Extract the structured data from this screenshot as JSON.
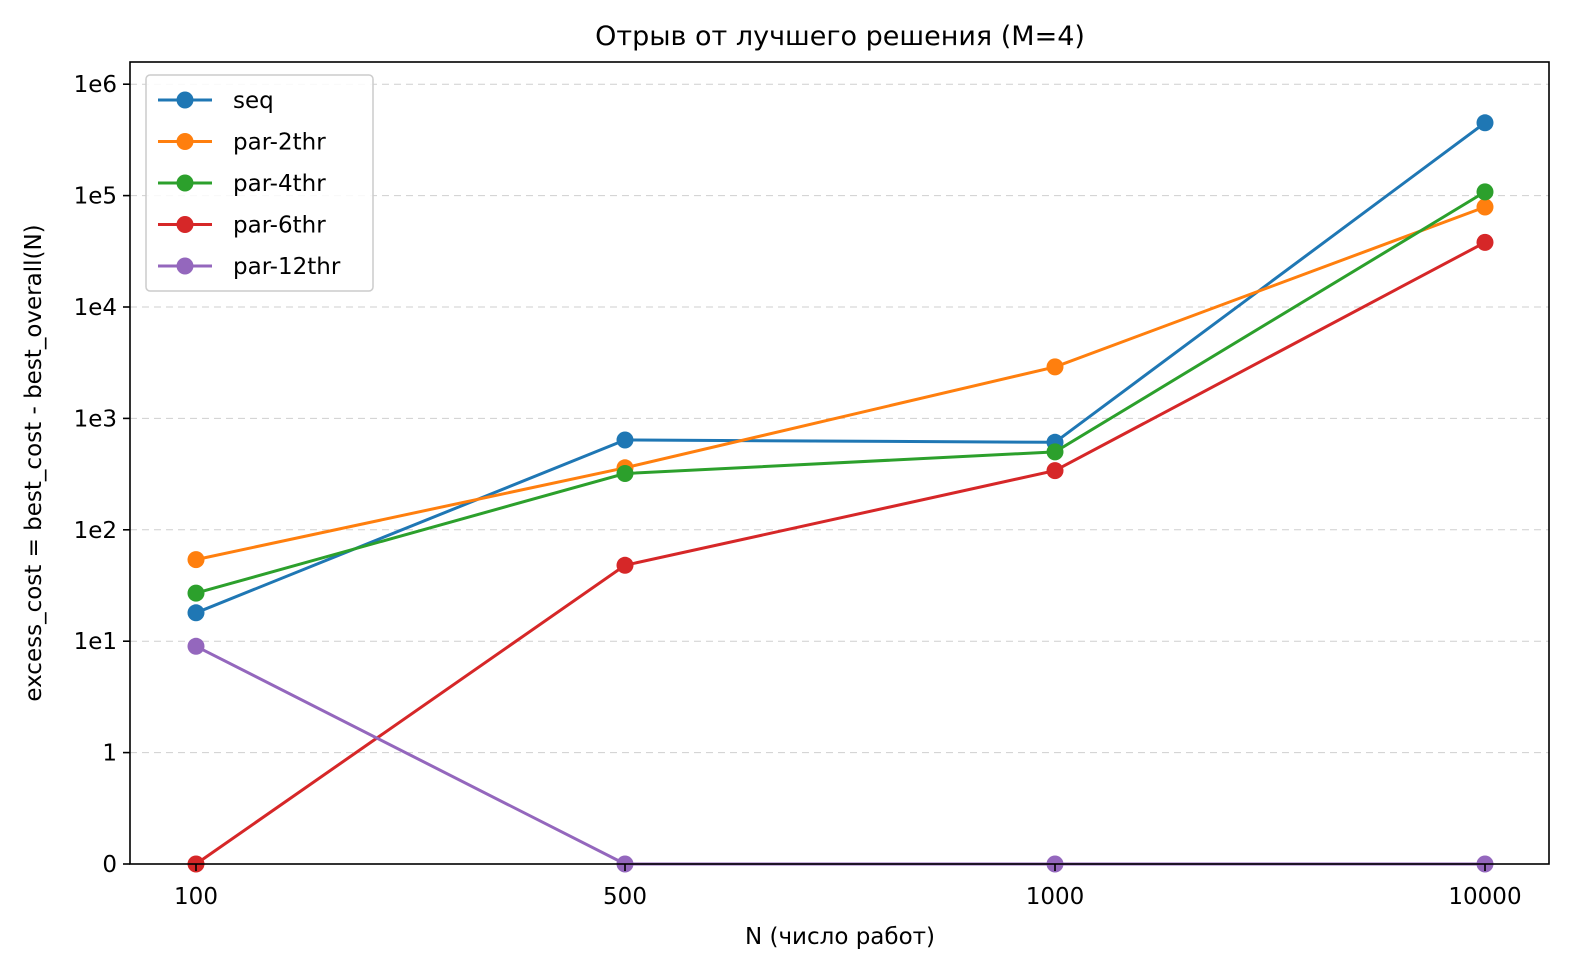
{
  "chart_data": {
    "type": "line",
    "title": "Отрыв от лучшего решения (M=4)",
    "xlabel": "N (число работ)",
    "ylabel": "excess_cost = best_cost - best_overall(N)",
    "categories": [
      "100",
      "500",
      "1000",
      "10000"
    ],
    "y_scale": "symlog",
    "y_ticks": [
      0,
      1,
      10,
      100,
      1000,
      10000,
      100000,
      1000000
    ],
    "y_tick_labels": [
      "0",
      "1",
      "1e1",
      "1e2",
      "1e3",
      "1e4",
      "1e5",
      "1e6"
    ],
    "ylim": [
      0,
      1500000
    ],
    "grid": "y dashed",
    "legend_position": "top-left",
    "series": [
      {
        "name": "seq",
        "color": "#1f77b4",
        "values": [
          18,
          640,
          610,
          450000
        ]
      },
      {
        "name": "par-2thr",
        "color": "#ff7f0e",
        "values": [
          54,
          360,
          2900,
          79000
        ]
      },
      {
        "name": "par-4thr",
        "color": "#2ca02c",
        "values": [
          27,
          320,
          500,
          108000
        ]
      },
      {
        "name": "par-6thr",
        "color": "#d62728",
        "values": [
          0,
          48,
          340,
          38000
        ]
      },
      {
        "name": "par-12thr",
        "color": "#9467bd",
        "values": [
          9,
          0,
          0,
          0
        ]
      }
    ]
  }
}
